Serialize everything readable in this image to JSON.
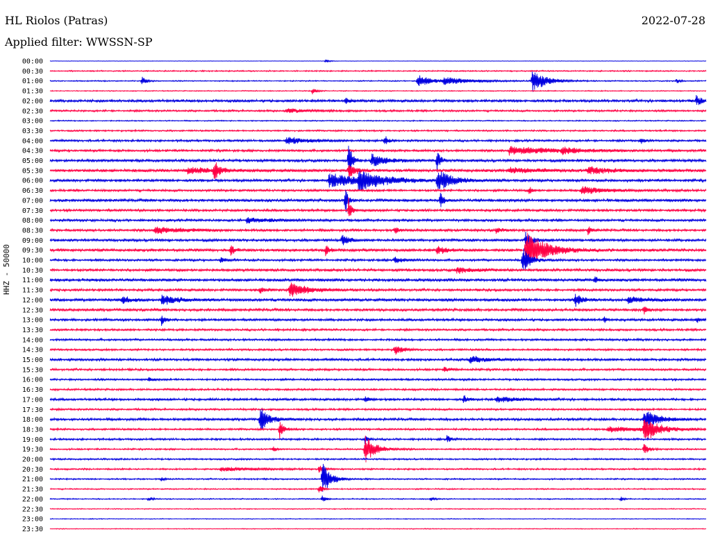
{
  "header": {
    "station": "HL Riolos (Patras)",
    "date": "2022-07-28",
    "filter": "Applied filter: WWSSN-SP"
  },
  "chart_data": {
    "type": "line",
    "subtype": "helicorder",
    "ylabel": "HHZ - 50000",
    "colors": [
      "#0000e0",
      "#ff0044"
    ],
    "rows": [
      "00:00",
      "00:30",
      "01:00",
      "01:30",
      "02:00",
      "02:30",
      "03:00",
      "03:30",
      "04:00",
      "04:30",
      "05:00",
      "05:30",
      "06:00",
      "06:30",
      "07:00",
      "07:30",
      "08:00",
      "08:30",
      "09:00",
      "09:30",
      "10:00",
      "10:30",
      "11:00",
      "11:30",
      "12:00",
      "12:30",
      "13:00",
      "13:30",
      "14:00",
      "14:30",
      "15:00",
      "15:30",
      "16:00",
      "16:30",
      "17:00",
      "17:30",
      "18:00",
      "18:30",
      "19:00",
      "19:30",
      "20:00",
      "20:30",
      "21:00",
      "21:30",
      "22:00",
      "22:30",
      "23:00",
      "23:30"
    ],
    "noise": [
      0.3,
      0.8,
      0.7,
      0.6,
      1.6,
      1.2,
      0.7,
      1.0,
      1.3,
      1.4,
      1.6,
      1.8,
      1.6,
      1.4,
      1.7,
      1.5,
      1.5,
      1.5,
      1.6,
      1.7,
      1.4,
      1.6,
      1.8,
      1.5,
      1.8,
      1.6,
      1.5,
      1.3,
      1.3,
      1.2,
      1.5,
      1.3,
      1.2,
      1.2,
      1.4,
      1.2,
      1.5,
      1.2,
      1.2,
      1.0,
      1.0,
      1.0,
      0.9,
      0.8,
      0.7,
      0.6,
      0.5,
      0.5
    ],
    "events": [
      {
        "row": 0,
        "t": 0.42,
        "amp": 3,
        "dur": 0.005
      },
      {
        "row": 2,
        "t": 0.14,
        "amp": 7,
        "dur": 0.006
      },
      {
        "row": 2,
        "t": 0.56,
        "amp": 9,
        "dur": 0.02
      },
      {
        "row": 2,
        "t": 0.6,
        "amp": 5,
        "dur": 0.04
      },
      {
        "row": 2,
        "t": 0.735,
        "amp": 16,
        "dur": 0.02
      },
      {
        "row": 2,
        "t": 0.955,
        "amp": 4,
        "dur": 0.005
      },
      {
        "row": 3,
        "t": 0.4,
        "amp": 5,
        "dur": 0.006
      },
      {
        "row": 4,
        "t": 0.45,
        "amp": 5,
        "dur": 0.006
      },
      {
        "row": 4,
        "t": 0.985,
        "amp": 7,
        "dur": 0.008
      },
      {
        "row": 5,
        "t": 0.36,
        "amp": 3,
        "dur": 0.03
      },
      {
        "row": 8,
        "t": 0.36,
        "amp": 5,
        "dur": 0.03
      },
      {
        "row": 8,
        "t": 0.51,
        "amp": 8,
        "dur": 0.005
      },
      {
        "row": 8,
        "t": 0.9,
        "amp": 4,
        "dur": 0.006
      },
      {
        "row": 9,
        "t": 0.7,
        "amp": 6,
        "dur": 0.06
      },
      {
        "row": 9,
        "t": 0.78,
        "amp": 4,
        "dur": 0.03
      },
      {
        "row": 10,
        "t": 0.455,
        "amp": 30,
        "dur": 0.005
      },
      {
        "row": 10,
        "t": 0.49,
        "amp": 10,
        "dur": 0.02
      },
      {
        "row": 10,
        "t": 0.59,
        "amp": 18,
        "dur": 0.004
      },
      {
        "row": 11,
        "t": 0.25,
        "amp": 14,
        "dur": 0.008
      },
      {
        "row": 11,
        "t": 0.21,
        "amp": 4,
        "dur": 0.04
      },
      {
        "row": 11,
        "t": 0.455,
        "amp": 12,
        "dur": 0.01
      },
      {
        "row": 11,
        "t": 0.7,
        "amp": 4,
        "dur": 0.04
      },
      {
        "row": 11,
        "t": 0.82,
        "amp": 5,
        "dur": 0.03
      },
      {
        "row": 12,
        "t": 0.425,
        "amp": 10,
        "dur": 0.04
      },
      {
        "row": 12,
        "t": 0.47,
        "amp": 12,
        "dur": 0.04
      },
      {
        "row": 12,
        "t": 0.59,
        "amp": 16,
        "dur": 0.02
      },
      {
        "row": 13,
        "t": 0.73,
        "amp": 6,
        "dur": 0.004
      },
      {
        "row": 13,
        "t": 0.81,
        "amp": 6,
        "dur": 0.03
      },
      {
        "row": 14,
        "t": 0.45,
        "amp": 22,
        "dur": 0.004
      },
      {
        "row": 14,
        "t": 0.595,
        "amp": 12,
        "dur": 0.004
      },
      {
        "row": 15,
        "t": 0.455,
        "amp": 18,
        "dur": 0.004
      },
      {
        "row": 16,
        "t": 0.3,
        "amp": 4,
        "dur": 0.03
      },
      {
        "row": 17,
        "t": 0.16,
        "amp": 5,
        "dur": 0.04
      },
      {
        "row": 17,
        "t": 0.525,
        "amp": 6,
        "dur": 0.005
      },
      {
        "row": 17,
        "t": 0.68,
        "amp": 5,
        "dur": 0.006
      },
      {
        "row": 17,
        "t": 0.82,
        "amp": 6,
        "dur": 0.005
      },
      {
        "row": 18,
        "t": 0.445,
        "amp": 8,
        "dur": 0.01
      },
      {
        "row": 18,
        "t": 0.725,
        "amp": 12,
        "dur": 0.01
      },
      {
        "row": 19,
        "t": 0.275,
        "amp": 9,
        "dur": 0.005
      },
      {
        "row": 19,
        "t": 0.42,
        "amp": 8,
        "dur": 0.005
      },
      {
        "row": 19,
        "t": 0.59,
        "amp": 8,
        "dur": 0.01
      },
      {
        "row": 19,
        "t": 0.725,
        "amp": 26,
        "dur": 0.03
      },
      {
        "row": 20,
        "t": 0.525,
        "amp": 6,
        "dur": 0.01
      },
      {
        "row": 20,
        "t": 0.72,
        "amp": 22,
        "dur": 0.01
      },
      {
        "row": 20,
        "t": 0.26,
        "amp": 4,
        "dur": 0.006
      },
      {
        "row": 21,
        "t": 0.62,
        "amp": 4,
        "dur": 0.03
      },
      {
        "row": 22,
        "t": 0.83,
        "amp": 5,
        "dur": 0.006
      },
      {
        "row": 23,
        "t": 0.365,
        "amp": 12,
        "dur": 0.025
      },
      {
        "row": 23,
        "t": 0.32,
        "amp": 5,
        "dur": 0.008
      },
      {
        "row": 24,
        "t": 0.11,
        "amp": 6,
        "dur": 0.01
      },
      {
        "row": 24,
        "t": 0.17,
        "amp": 7,
        "dur": 0.02
      },
      {
        "row": 24,
        "t": 0.8,
        "amp": 9,
        "dur": 0.01
      },
      {
        "row": 24,
        "t": 0.88,
        "amp": 4,
        "dur": 0.03
      },
      {
        "row": 25,
        "t": 0.905,
        "amp": 7,
        "dur": 0.004
      },
      {
        "row": 26,
        "t": 0.17,
        "amp": 7,
        "dur": 0.005
      },
      {
        "row": 26,
        "t": 0.845,
        "amp": 4,
        "dur": 0.004
      },
      {
        "row": 26,
        "t": 0.985,
        "amp": 4,
        "dur": 0.005
      },
      {
        "row": 29,
        "t": 0.525,
        "amp": 8,
        "dur": 0.01
      },
      {
        "row": 30,
        "t": 0.64,
        "amp": 6,
        "dur": 0.02
      },
      {
        "row": 31,
        "t": 0.6,
        "amp": 3,
        "dur": 0.01
      },
      {
        "row": 32,
        "t": 0.15,
        "amp": 3,
        "dur": 0.006
      },
      {
        "row": 34,
        "t": 0.48,
        "amp": 4,
        "dur": 0.006
      },
      {
        "row": 34,
        "t": 0.63,
        "amp": 6,
        "dur": 0.006
      },
      {
        "row": 34,
        "t": 0.68,
        "amp": 4,
        "dur": 0.03
      },
      {
        "row": 36,
        "t": 0.32,
        "amp": 18,
        "dur": 0.012
      },
      {
        "row": 36,
        "t": 0.905,
        "amp": 14,
        "dur": 0.02
      },
      {
        "row": 37,
        "t": 0.35,
        "amp": 14,
        "dur": 0.005
      },
      {
        "row": 37,
        "t": 0.905,
        "amp": 18,
        "dur": 0.02
      },
      {
        "row": 37,
        "t": 0.85,
        "amp": 4,
        "dur": 0.05
      },
      {
        "row": 38,
        "t": 0.48,
        "amp": 6,
        "dur": 0.005
      },
      {
        "row": 38,
        "t": 0.605,
        "amp": 5,
        "dur": 0.005
      },
      {
        "row": 39,
        "t": 0.48,
        "amp": 20,
        "dur": 0.015
      },
      {
        "row": 39,
        "t": 0.905,
        "amp": 10,
        "dur": 0.006
      },
      {
        "row": 39,
        "t": 0.34,
        "amp": 4,
        "dur": 0.005
      },
      {
        "row": 41,
        "t": 0.26,
        "amp": 3,
        "dur": 0.05
      },
      {
        "row": 41,
        "t": 0.41,
        "amp": 6,
        "dur": 0.005
      },
      {
        "row": 42,
        "t": 0.415,
        "amp": 24,
        "dur": 0.012
      },
      {
        "row": 42,
        "t": 0.17,
        "amp": 3,
        "dur": 0.004
      },
      {
        "row": 43,
        "t": 0.41,
        "amp": 8,
        "dur": 0.005
      },
      {
        "row": 44,
        "t": 0.415,
        "amp": 5,
        "dur": 0.005
      },
      {
        "row": 44,
        "t": 0.15,
        "amp": 3,
        "dur": 0.005
      },
      {
        "row": 44,
        "t": 0.58,
        "amp": 3,
        "dur": 0.005
      },
      {
        "row": 44,
        "t": 0.87,
        "amp": 3,
        "dur": 0.005
      }
    ]
  }
}
